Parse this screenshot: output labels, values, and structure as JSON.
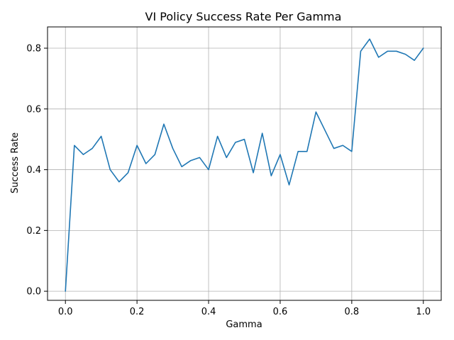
{
  "chart_data": {
    "type": "line",
    "title": "VI Policy Success Rate Per Gamma",
    "xlabel": "Gamma",
    "ylabel": "Success Rate",
    "xlim": [
      -0.05,
      1.05
    ],
    "ylim": [
      -0.03,
      0.87
    ],
    "xticks": [
      0.0,
      0.2,
      0.4,
      0.6,
      0.8,
      1.0
    ],
    "xtick_labels": [
      "0.0",
      "0.2",
      "0.4",
      "0.6",
      "0.8",
      "1.0"
    ],
    "yticks": [
      0.0,
      0.2,
      0.4,
      0.6,
      0.8
    ],
    "ytick_labels": [
      "0.0",
      "0.2",
      "0.4",
      "0.6",
      "0.8"
    ],
    "grid": true,
    "series": [
      {
        "color": "#1f77b4",
        "x": [
          0.0,
          0.025,
          0.05,
          0.075,
          0.1,
          0.125,
          0.15,
          0.175,
          0.2,
          0.225,
          0.25,
          0.275,
          0.3,
          0.325,
          0.35,
          0.375,
          0.4,
          0.425,
          0.45,
          0.475,
          0.5,
          0.525,
          0.55,
          0.575,
          0.6,
          0.625,
          0.65,
          0.675,
          0.7,
          0.725,
          0.75,
          0.775,
          0.8,
          0.825,
          0.85,
          0.875,
          0.9,
          0.925,
          0.95,
          0.975,
          1.0
        ],
        "y": [
          0.0,
          0.48,
          0.45,
          0.47,
          0.51,
          0.4,
          0.36,
          0.39,
          0.48,
          0.42,
          0.45,
          0.55,
          0.47,
          0.41,
          0.43,
          0.44,
          0.4,
          0.51,
          0.44,
          0.49,
          0.5,
          0.39,
          0.52,
          0.38,
          0.45,
          0.35,
          0.46,
          0.46,
          0.59,
          0.53,
          0.47,
          0.48,
          0.46,
          0.79,
          0.83,
          0.77,
          0.79,
          0.79,
          0.78,
          0.76,
          0.8
        ]
      }
    ]
  }
}
